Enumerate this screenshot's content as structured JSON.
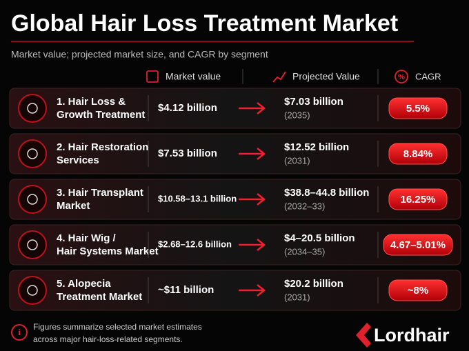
{
  "header": {
    "title": "Global Hair Loss Treatment Market",
    "subtitle": "Market value; projected market size, and CAGR by segment"
  },
  "columns": [
    "Market value",
    "Projected Value",
    "CAGR"
  ],
  "rows": [
    {
      "label": [
        "1. Hair Loss &",
        "Growth Treatment"
      ],
      "market_value": "$4.12 billion",
      "projected_value": "$7.03 billion",
      "projected_year": "(2035)",
      "cagr": "5.5%"
    },
    {
      "label": [
        "2. Hair Restoration",
        "Services"
      ],
      "market_value": "$7.53 billion",
      "projected_value": "$12.52 billion",
      "projected_year": "(2031)",
      "cagr": "8.84%"
    },
    {
      "label": [
        "3. Hair Transplant",
        "Market"
      ],
      "market_value": "$10.58–13.1 billion",
      "projected_value": "$38.8–44.8 billion",
      "projected_year": "(2032–33)",
      "cagr": "16.25%"
    },
    {
      "label": [
        "4. Hair Wig /",
        "Hair Systems Market"
      ],
      "market_value": "$2.68–12.6 billion",
      "projected_value": "$4–20.5 billion",
      "projected_year": "(2034–35)",
      "cagr": "4.67–5.01%"
    },
    {
      "label": [
        "5. Alopecia",
        "Treatment Market"
      ],
      "market_value": "~$11 billion",
      "projected_value": "$20.2 billion",
      "projected_year": "(2031)",
      "cagr": "~8%"
    }
  ],
  "footnote": [
    "Figures summarize selected market estimates",
    "across major hair-loss-related segments."
  ],
  "logo": "Lordhair"
}
